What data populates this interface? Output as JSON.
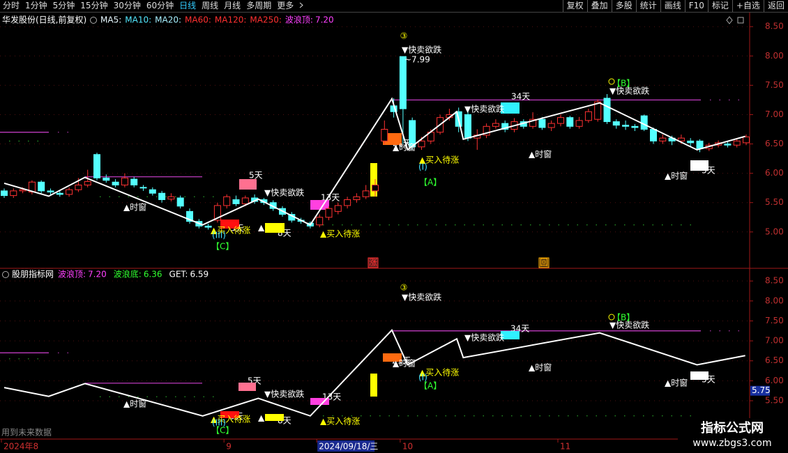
{
  "toolbar": {
    "left": [
      "分时",
      "1分钟",
      "5分钟",
      "15分钟",
      "30分钟",
      "60分钟",
      "日线",
      "周线",
      "月线",
      "多周期",
      "更多"
    ],
    "active": 6,
    "right": [
      "复权",
      "叠加",
      "多股",
      "统计",
      "画线",
      "F10",
      "标记",
      "+自选",
      "返回"
    ]
  },
  "chart_data": [
    {
      "type": "candlestick",
      "title": "华发股份(日线,前复权)",
      "indicators": [
        {
          "name": "MA5:",
          "color": "#e8f8ff"
        },
        {
          "name": "MA10:",
          "color": "#54e8ff"
        },
        {
          "name": "MA20:",
          "color": "#a8f0ff"
        },
        {
          "name": "MA60:",
          "color": "#ff3030"
        },
        {
          "name": "MA120:",
          "color": "#ff3030"
        },
        {
          "name": "MA250:",
          "color": "#ff3030"
        }
      ],
      "readouts": [
        {
          "name": "波浪顶:",
          "text": "7.20",
          "color": "#ff40ff"
        }
      ],
      "up_color": "#ff3232",
      "down_color": "#54ffff",
      "ohlc": [
        [
          5.7,
          5.74,
          5.58,
          5.62
        ],
        [
          5.62,
          5.74,
          5.58,
          5.7
        ],
        [
          5.7,
          5.76,
          5.66,
          5.72
        ],
        [
          5.68,
          5.88,
          5.64,
          5.85
        ],
        [
          5.85,
          5.88,
          5.66,
          5.7
        ],
        [
          5.7,
          5.74,
          5.64,
          5.68
        ],
        [
          5.66,
          5.7,
          5.6,
          5.64
        ],
        [
          5.64,
          5.76,
          5.6,
          5.72
        ],
        [
          5.72,
          5.92,
          5.68,
          5.8
        ],
        [
          5.8,
          6.06,
          5.76,
          5.86
        ],
        [
          6.32,
          6.35,
          5.88,
          5.92
        ],
        [
          5.92,
          5.98,
          5.84,
          5.88
        ],
        [
          5.85,
          5.9,
          5.76,
          5.8
        ],
        [
          5.8,
          6.0,
          5.76,
          5.92
        ],
        [
          5.9,
          5.94,
          5.76,
          5.8
        ],
        [
          5.76,
          5.8,
          5.7,
          5.75
        ],
        [
          5.72,
          5.76,
          5.62,
          5.66
        ],
        [
          5.66,
          5.7,
          5.5,
          5.55
        ],
        [
          5.56,
          5.66,
          5.52,
          5.6
        ],
        [
          5.58,
          5.62,
          5.4,
          5.44
        ],
        [
          5.35,
          5.4,
          5.14,
          5.18
        ],
        [
          5.18,
          5.22,
          5.06,
          5.1
        ],
        [
          5.1,
          5.14,
          5.04,
          5.08
        ],
        [
          5.2,
          5.5,
          5.16,
          5.45
        ],
        [
          5.45,
          5.64,
          5.4,
          5.6
        ],
        [
          5.55,
          5.62,
          5.44,
          5.48
        ],
        [
          5.48,
          5.62,
          5.44,
          5.58
        ],
        [
          5.58,
          5.64,
          5.48,
          5.52
        ],
        [
          5.55,
          5.58,
          5.46,
          5.5
        ],
        [
          5.5,
          5.54,
          5.36,
          5.4
        ],
        [
          5.4,
          5.44,
          5.26,
          5.3
        ],
        [
          5.3,
          5.34,
          5.16,
          5.2
        ],
        [
          5.2,
          5.24,
          5.14,
          5.18
        ],
        [
          5.15,
          5.18,
          5.06,
          5.1
        ],
        [
          5.12,
          5.3,
          5.08,
          5.25
        ],
        [
          5.25,
          5.44,
          5.2,
          5.4
        ],
        [
          5.35,
          5.5,
          5.3,
          5.45
        ],
        [
          5.45,
          5.6,
          5.4,
          5.55
        ],
        [
          5.55,
          5.66,
          5.5,
          5.6
        ],
        [
          5.6,
          5.8,
          5.56,
          5.7
        ],
        [
          5.7,
          5.9,
          5.6,
          5.8
        ],
        [
          6.55,
          6.9,
          6.5,
          6.75
        ],
        [
          7.15,
          7.28,
          6.95,
          7.05
        ],
        [
          7.99,
          7.99,
          6.5,
          7.1
        ],
        [
          6.9,
          6.95,
          6.4,
          6.45
        ],
        [
          6.45,
          6.62,
          6.4,
          6.55
        ],
        [
          6.55,
          6.75,
          6.5,
          6.7
        ],
        [
          6.7,
          7.0,
          6.66,
          6.95
        ],
        [
          6.95,
          7.1,
          6.9,
          7.0
        ],
        [
          7.05,
          7.12,
          6.7,
          6.8
        ],
        [
          7.0,
          7.05,
          6.55,
          6.6
        ],
        [
          6.6,
          6.75,
          6.4,
          6.65
        ],
        [
          6.65,
          6.85,
          6.6,
          6.8
        ],
        [
          6.8,
          6.92,
          6.76,
          6.85
        ],
        [
          6.85,
          6.9,
          6.7,
          6.75
        ],
        [
          6.75,
          6.94,
          6.7,
          6.88
        ],
        [
          6.88,
          6.92,
          6.76,
          6.8
        ],
        [
          6.8,
          7.04,
          6.76,
          6.92
        ],
        [
          6.92,
          6.96,
          6.74,
          6.78
        ],
        [
          6.78,
          6.9,
          6.72,
          6.85
        ],
        [
          6.85,
          7.0,
          6.8,
          6.95
        ],
        [
          6.95,
          6.98,
          6.76,
          6.8
        ],
        [
          6.8,
          6.96,
          6.76,
          6.9
        ],
        [
          6.9,
          7.1,
          6.86,
          7.05
        ],
        [
          6.92,
          7.26,
          6.88,
          7.22
        ],
        [
          7.28,
          7.35,
          6.84,
          6.88
        ],
        [
          6.88,
          6.92,
          6.76,
          6.82
        ],
        [
          6.82,
          6.9,
          6.74,
          6.8
        ],
        [
          6.8,
          6.84,
          6.72,
          6.78
        ],
        [
          6.98,
          7.0,
          6.72,
          6.75
        ],
        [
          6.75,
          6.78,
          6.5,
          6.55
        ],
        [
          6.55,
          6.66,
          6.5,
          6.6
        ],
        [
          6.6,
          6.64,
          6.48,
          6.55
        ],
        [
          6.55,
          6.66,
          6.5,
          6.6
        ],
        [
          6.55,
          6.6,
          6.46,
          6.52
        ],
        [
          6.55,
          6.58,
          6.36,
          6.42
        ],
        [
          6.42,
          6.52,
          6.38,
          6.48
        ],
        [
          6.48,
          6.56,
          6.44,
          6.52
        ],
        [
          6.5,
          6.54,
          6.44,
          6.48
        ],
        [
          6.48,
          6.58,
          6.44,
          6.55
        ],
        [
          6.52,
          6.66,
          6.48,
          6.62
        ]
      ],
      "wave": {
        "color": "#ffffff",
        "x": [
          0,
          4.8,
          8.7,
          21.4,
          27.4,
          33,
          41.8,
          43.5,
          48.8,
          49.5,
          64.2,
          74.7,
          79.9
        ],
        "values": [
          5.83,
          5.61,
          5.93,
          5.12,
          5.56,
          5.12,
          7.27,
          6.4,
          7.05,
          6.58,
          7.2,
          6.4,
          6.63
        ]
      },
      "levels": [
        {
          "value": 6.7,
          "color": "#d040d0"
        },
        {
          "value": 5.94,
          "color": "#d040d0"
        },
        {
          "value": 7.25,
          "color": "#d040d0"
        },
        {
          "value": 6.55,
          "color": "#30c030"
        },
        {
          "value": 5.6,
          "color": "#30c030"
        },
        {
          "value": 5.12,
          "color": "#30c030"
        }
      ],
      "boxes": [
        {
          "label": "5天",
          "color": "#ff7090"
        },
        {
          "label": "3天",
          "color": "#ff1010"
        },
        {
          "label": "8天",
          "color": "#ffff00"
        },
        {
          "label": "13天",
          "color": "#ff40e0"
        },
        {
          "label": "21天",
          "color": "#ff6a10"
        },
        {
          "label": "34天",
          "color": "#30f0ff"
        },
        {
          "label": "5天",
          "color": "#ffffff"
        }
      ],
      "annotations": [
        {
          "text": "③",
          "color": "#ffff00"
        },
        {
          "text": "▼快卖欲跌",
          "color": "#ffffff"
        },
        {
          "text": "~7.99",
          "color": "#ffffff"
        },
        {
          "text": "▼快卖欲跌",
          "color": "#ffffff"
        },
        {
          "text": "▼快卖欲跌",
          "color": "#ffffff"
        },
        {
          "text": "▼快卖欲跌",
          "color": "#ffffff"
        },
        {
          "text": "【B】",
          "color": "#30ff30"
        },
        {
          "text": "▲时窗",
          "color": "#ffffff"
        },
        {
          "text": "▲时窗",
          "color": "#ffffff"
        },
        {
          "text": "▲时窗",
          "color": "#ffffff"
        },
        {
          "text": "▲时窗",
          "color": "#ffffff"
        },
        {
          "text": "▲",
          "color": "#ffffff"
        },
        {
          "text": "▲买入待涨",
          "color": "#ffff00"
        },
        {
          "text": "▲买入待涨",
          "color": "#ffff00"
        },
        {
          "text": "▲买入待涨",
          "color": "#ffff00"
        },
        {
          "text": "(III)",
          "color": "#40e0ff"
        },
        {
          "text": "(I)",
          "color": "#40e0ff"
        },
        {
          "text": "【C】",
          "color": "#30ff30"
        },
        {
          "text": "【A】",
          "color": "#30ff30"
        },
        {
          "text": "涨",
          "color": "#ff3030"
        },
        {
          "text": "回",
          "color": "#ffb000"
        }
      ],
      "ylim": [
        4.38,
        8.74
      ],
      "yticks": [
        {
          "value": 8.5,
          "label": "8.50"
        },
        {
          "value": 8.0,
          "label": "8.00"
        },
        {
          "value": 7.5,
          "label": "7.50"
        },
        {
          "value": 7.0,
          "label": "7.00"
        },
        {
          "value": 6.5,
          "label": "6.50"
        },
        {
          "value": 6.0,
          "label": "6.00"
        },
        {
          "value": 5.5,
          "label": "5.50"
        },
        {
          "value": 5.0,
          "label": "5.00"
        }
      ]
    },
    {
      "type": "line",
      "title": "股朋指标网",
      "readouts": [
        {
          "name": "波浪顶:",
          "text": "7.20",
          "color": "#ff40ff"
        },
        {
          "name": "波浪底:",
          "text": "6.36",
          "color": "#30ff30"
        },
        {
          "name": "GET:",
          "text": "6.59",
          "color": "#ffffff"
        }
      ],
      "wave": {
        "color": "#ffffff",
        "x": [
          0,
          4.8,
          8.7,
          21.4,
          27.4,
          33,
          41.8,
          43.5,
          48.8,
          49.5,
          64.2,
          74.7,
          79.9
        ],
        "values": [
          5.83,
          5.61,
          5.93,
          5.12,
          5.56,
          5.12,
          7.27,
          6.4,
          7.05,
          6.58,
          7.2,
          6.4,
          6.63
        ]
      },
      "levels": [
        {
          "value": 6.7,
          "color": "#d040d0"
        },
        {
          "value": 5.94,
          "color": "#d040d0"
        },
        {
          "value": 7.25,
          "color": "#d040d0"
        },
        {
          "value": 6.55,
          "color": "#30c030"
        },
        {
          "value": 5.6,
          "color": "#30c030"
        },
        {
          "value": 5.12,
          "color": "#30c030"
        }
      ],
      "boxes": [
        {
          "label": "5天",
          "color": "#ff7090"
        },
        {
          "label": "3天",
          "color": "#ff1010"
        },
        {
          "label": "8天",
          "color": "#ffff00"
        },
        {
          "label": "13天",
          "color": "#ff40e0"
        },
        {
          "label": "21天",
          "color": "#ff6a10"
        },
        {
          "label": "34天",
          "color": "#30f0ff"
        },
        {
          "label": "5天",
          "color": "#ffffff"
        }
      ],
      "annotations": [
        {
          "text": "③",
          "color": "#ffff00"
        },
        {
          "text": "▼快卖欲跌",
          "color": "#ffffff"
        },
        {
          "text": "▼快卖欲跌",
          "color": "#ffffff"
        },
        {
          "text": "▼快卖欲跌",
          "color": "#ffffff"
        },
        {
          "text": "▼快卖欲跌",
          "color": "#ffffff"
        },
        {
          "text": "【B】",
          "color": "#30ff30"
        },
        {
          "text": "▲时窗",
          "color": "#ffffff"
        },
        {
          "text": "▲时窗",
          "color": "#ffffff"
        },
        {
          "text": "▲时窗",
          "color": "#ffffff"
        },
        {
          "text": "▲时窗",
          "color": "#ffffff"
        },
        {
          "text": "▲",
          "color": "#ffffff"
        },
        {
          "text": "▲买入待涨",
          "color": "#ffff00"
        },
        {
          "text": "▲买入待涨",
          "color": "#ffff00"
        },
        {
          "text": "▲买入待涨",
          "color": "#ffff00"
        },
        {
          "text": "(III)",
          "color": "#40e0ff"
        },
        {
          "text": "(I)",
          "color": "#40e0ff"
        },
        {
          "text": "【C】",
          "color": "#30ff30"
        },
        {
          "text": "【A】",
          "color": "#30ff30"
        }
      ],
      "cursor_price": {
        "value": 5.75,
        "label": "5.75"
      },
      "categories": [
        "2024年8",
        null,
        null,
        null,
        null,
        null,
        null,
        null,
        null,
        null,
        null,
        null,
        null,
        null,
        null,
        null,
        null,
        null,
        null,
        null,
        null,
        null,
        null,
        null,
        "9",
        null,
        null,
        null,
        null,
        null,
        null,
        null,
        null,
        null,
        "2024/09/18/三",
        null,
        null,
        null,
        null,
        null,
        null,
        null,
        null,
        "10",
        null,
        null,
        null,
        null,
        null,
        null,
        null,
        null,
        null,
        null,
        null,
        null,
        null,
        null,
        null,
        null,
        "11",
        null,
        null,
        null,
        null,
        null,
        null,
        null,
        null,
        null,
        null,
        null,
        null,
        null,
        null,
        null,
        null,
        null,
        null,
        null,
        null
      ],
      "ylim": [
        4.54,
        8.8
      ],
      "yticks": [
        {
          "value": 8.5,
          "label": "8.50"
        },
        {
          "value": 8.0,
          "label": "8.00"
        },
        {
          "value": 7.5,
          "label": "7.50"
        },
        {
          "value": 7.0,
          "label": "7.00"
        },
        {
          "value": 6.5,
          "label": "6.50"
        },
        {
          "value": 6.0,
          "label": "6.00"
        },
        {
          "value": 5.5,
          "label": "5.50"
        }
      ]
    }
  ],
  "footer": {
    "note": "用到未来数据"
  },
  "watermark": {
    "name": "指标公式网",
    "url": "www.zbgs3.com"
  }
}
